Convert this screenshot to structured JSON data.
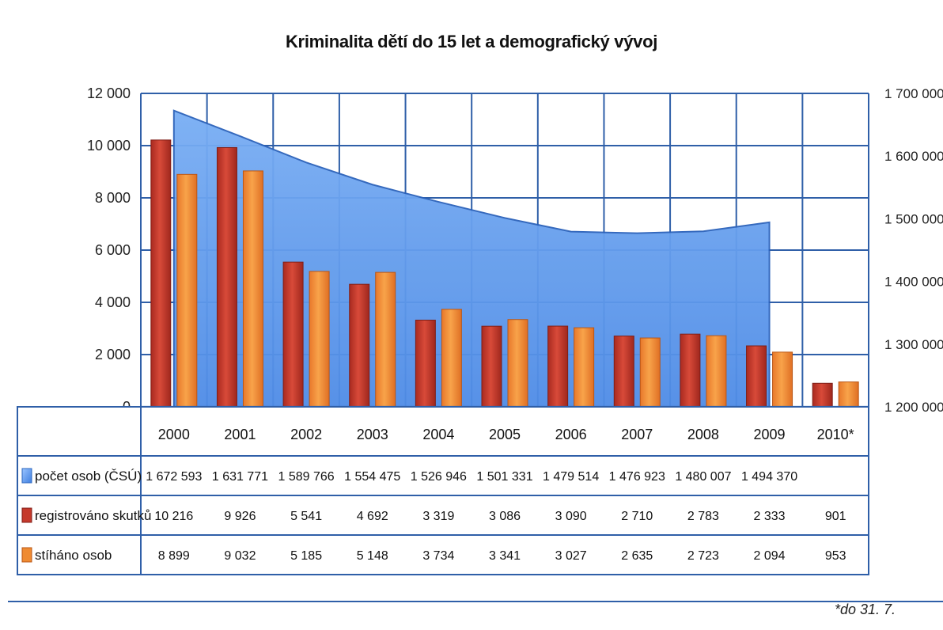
{
  "chart_data": {
    "type": "bar",
    "title": "Kriminalita dětí do 15 let a demografický vývoj",
    "categories": [
      "2000",
      "2001",
      "2002",
      "2003",
      "2004",
      "2005",
      "2006",
      "2007",
      "2008",
      "2009",
      "2010*"
    ],
    "left_axis": {
      "ticks": [
        "12 000",
        "10 000",
        "8 000",
        "6 000",
        "4 000",
        "2 000",
        "0"
      ],
      "range": [
        0,
        12000
      ]
    },
    "right_axis": {
      "ticks": [
        "1 700 000",
        "1 600 000",
        "1 500 000",
        "1 400 000",
        "1 300 000",
        "1 200 000"
      ],
      "range": [
        1200000,
        1700000
      ]
    },
    "series": [
      {
        "name": "počet osob (ČSÚ)",
        "type": "area",
        "axis": "right",
        "color": "#4f8ce6",
        "values": [
          1672593,
          1631771,
          1589766,
          1554475,
          1526946,
          1501331,
          1479514,
          1476923,
          1480007,
          1494370,
          null
        ],
        "labels": [
          "1 672 593",
          "1 631 771",
          "1 589 766",
          "1 554 475",
          "1 526 946",
          "1 501 331",
          "1 479 514",
          "1 476 923",
          "1 480 007",
          "1 494 370",
          ""
        ]
      },
      {
        "name": "registrováno skutků",
        "type": "bar",
        "axis": "left",
        "color": "#c53a2c",
        "values": [
          10216,
          9926,
          5541,
          4692,
          3319,
          3086,
          3090,
          2710,
          2783,
          2333,
          901
        ],
        "labels": [
          "10 216",
          "9 926",
          "5 541",
          "4 692",
          "3 319",
          "3 086",
          "3 090",
          "2 710",
          "2 783",
          "2 333",
          "901"
        ]
      },
      {
        "name": "stíháno osob",
        "type": "bar",
        "axis": "left",
        "color": "#ef8b33",
        "values": [
          8899,
          9032,
          5185,
          5148,
          3734,
          3341,
          3027,
          2635,
          2723,
          2094,
          953
        ],
        "labels": [
          "8 899",
          "9 032",
          "5 185",
          "5 148",
          "3 734",
          "3 341",
          "3 027",
          "2 635",
          "2 723",
          "2 094",
          "953"
        ]
      }
    ],
    "footnote": "*do 31. 7.",
    "grid": true,
    "legend_position": "table-left"
  }
}
